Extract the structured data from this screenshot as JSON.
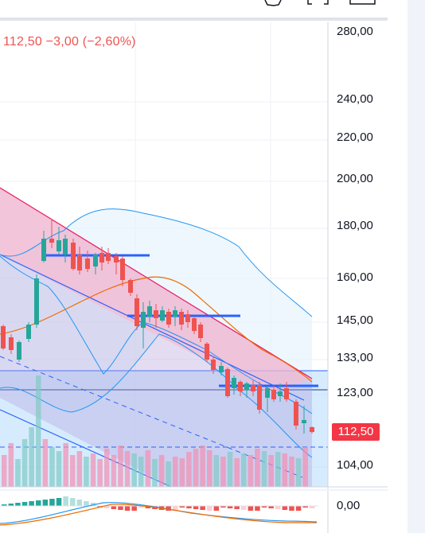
{
  "quote_text": "112,50 −3,00 (−2,60%)",
  "price_axis": {
    "labels": [
      "280,00",
      "240,00",
      "220,00",
      "200,00",
      "180,00",
      "160,00",
      "145,00",
      "133,00",
      "123,00",
      "104,00"
    ]
  },
  "last_price": "112,50",
  "oscillator_axis": {
    "zero_label": "0,00"
  },
  "colors": {
    "up": "#26a69a",
    "down": "#ef5350",
    "price_tag": "#f23645",
    "trendline": "#2962ff",
    "channel_fill": "#f48fb1",
    "band": "#2196f3",
    "ma": "#ef6c00"
  },
  "toolbar_icons": [
    "settings-icon",
    "fullscreen-icon",
    "snapshot-icon"
  ]
}
